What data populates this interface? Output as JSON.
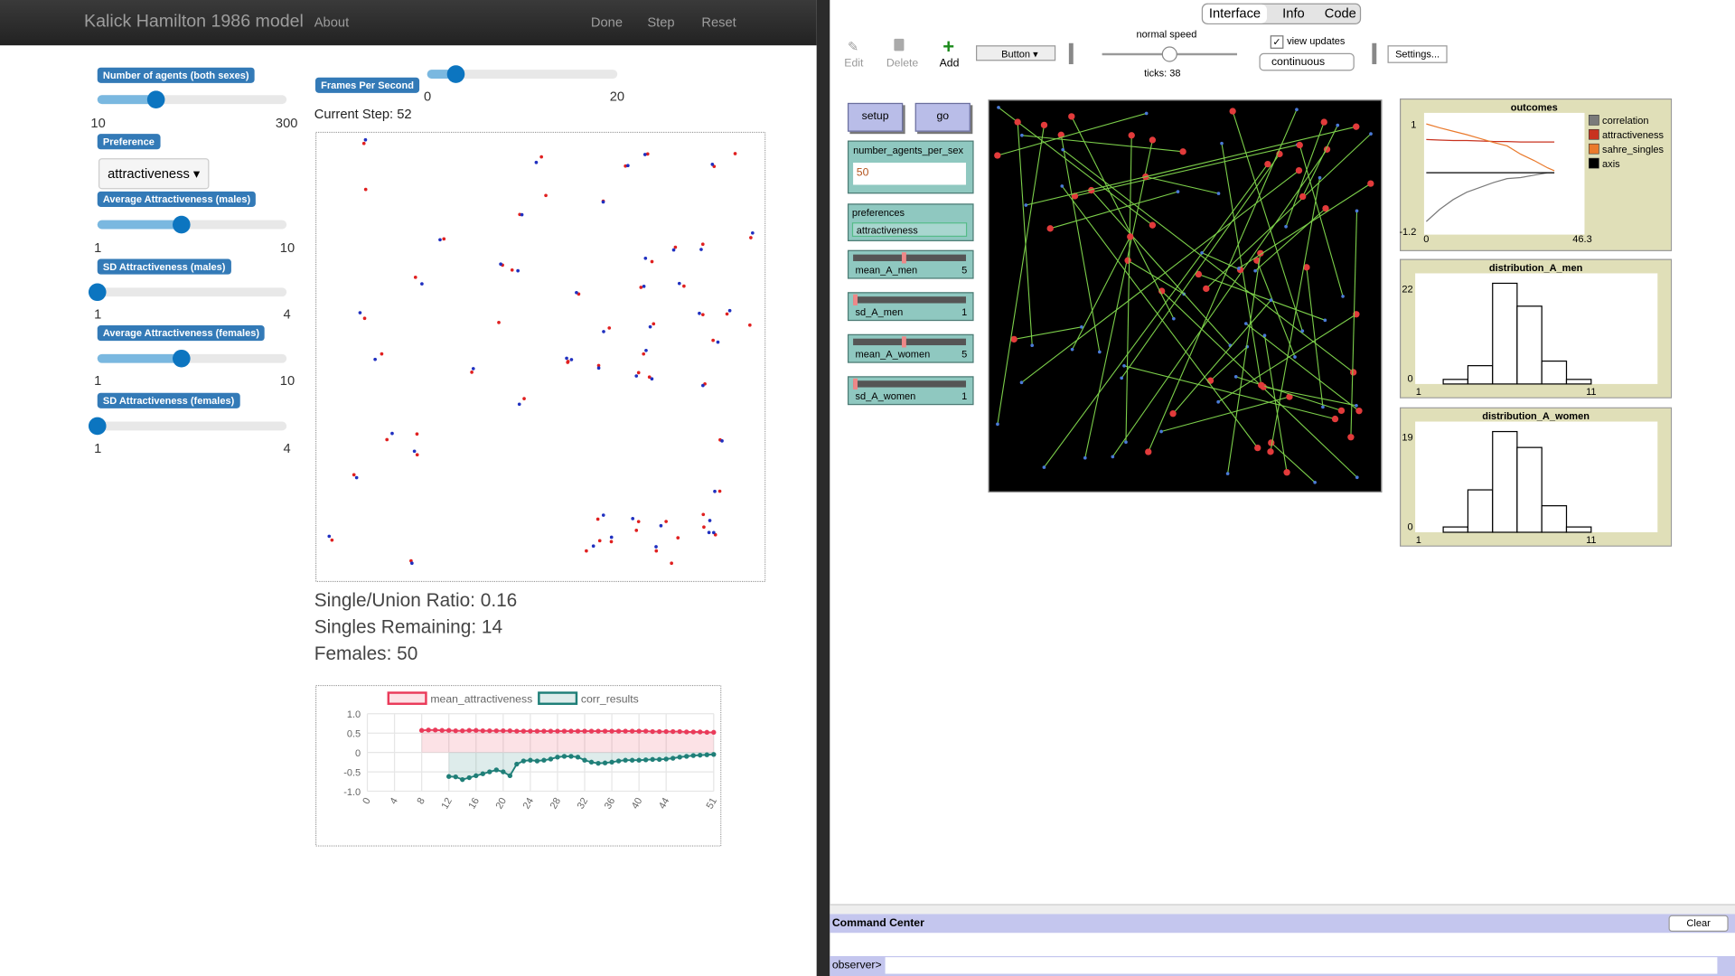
{
  "app": {
    "title": "Kalick Hamilton 1986 model",
    "nav": [
      "About",
      "Done",
      "Step",
      "Reset"
    ],
    "sliders": [
      {
        "label": "Number of agents (both sexes)",
        "min": 10,
        "max": 300
      },
      {
        "label": "Average Attractiveness (males)",
        "min": 1,
        "max": 10
      },
      {
        "label": "SD Attractiveness (males)",
        "min": 1,
        "max": 4
      },
      {
        "label": "Average Attractiveness (females)",
        "min": 1,
        "max": 10
      },
      {
        "label": "SD Attractiveness (females)",
        "min": 1,
        "max": 4
      }
    ],
    "preference_label": "Preference",
    "preference_value": "attractiveness",
    "fps": {
      "label": "Frames Per Second",
      "min": 0,
      "max": 20
    },
    "current_step": "Current Step: 52",
    "stats": [
      "Single/Union Ratio: 0.16",
      "Singles Remaining: 14",
      "Females: 50"
    ]
  },
  "netlogo": {
    "tabs": [
      "Interface",
      "Info",
      "Code"
    ],
    "tools": [
      "Edit",
      "Delete",
      "Add"
    ],
    "widget_type": "Button",
    "speed": "normal speed",
    "ticks": "ticks: 38",
    "view_updates": "view updates",
    "update_mode": "continuous",
    "settings": "Settings...",
    "buttons": [
      "setup",
      "go"
    ],
    "input": {
      "label": "number_agents_per_sex",
      "value": "50"
    },
    "chooser": {
      "label": "preferences",
      "value": "attractiveness"
    },
    "sliders": [
      {
        "label": "mean_A_men",
        "value": 5
      },
      {
        "label": "sd_A_men",
        "value": 1
      },
      {
        "label": "mean_A_women",
        "value": 5
      },
      {
        "label": "sd_A_women",
        "value": 1
      }
    ],
    "command_center": "Command Center",
    "clear": "Clear",
    "prompt": "observer>"
  },
  "chart_data": [
    {
      "type": "line",
      "x": [
        8,
        9,
        10,
        11,
        12,
        13,
        14,
        15,
        16,
        17,
        18,
        19,
        20,
        21,
        22,
        23,
        24,
        25,
        26,
        27,
        28,
        29,
        30,
        31,
        32,
        33,
        34,
        35,
        36,
        37,
        38,
        39,
        40,
        41,
        42,
        43,
        44,
        45,
        46,
        47,
        48,
        49,
        50,
        51
      ],
      "series": [
        {
          "name": "mean_attractiveness",
          "color": "#ea3b5a",
          "values": [
            0.57,
            0.58,
            0.58,
            0.57,
            0.57,
            0.56,
            0.56,
            0.57,
            0.57,
            0.56,
            0.56,
            0.56,
            0.56,
            0.56,
            0.55,
            0.55,
            0.55,
            0.55,
            0.55,
            0.55,
            0.55,
            0.55,
            0.55,
            0.55,
            0.55,
            0.55,
            0.55,
            0.55,
            0.55,
            0.55,
            0.55,
            0.55,
            0.55,
            0.55,
            0.54,
            0.54,
            0.54,
            0.54,
            0.54,
            0.53,
            0.53,
            0.53,
            0.52,
            0.52
          ]
        },
        {
          "name": "corr_results",
          "color": "#1f7f78",
          "values": [
            null,
            null,
            null,
            null,
            -0.62,
            -0.63,
            -0.7,
            -0.65,
            -0.6,
            -0.55,
            -0.5,
            -0.45,
            -0.5,
            -0.6,
            -0.3,
            -0.22,
            -0.2,
            -0.22,
            -0.2,
            -0.17,
            -0.12,
            -0.1,
            -0.1,
            -0.12,
            -0.2,
            -0.25,
            -0.28,
            -0.27,
            -0.25,
            -0.22,
            -0.2,
            -0.2,
            -0.2,
            -0.19,
            -0.18,
            -0.18,
            -0.17,
            -0.15,
            -0.12,
            -0.1,
            -0.08,
            -0.07,
            -0.06,
            -0.05
          ]
        }
      ],
      "xlim": [
        0,
        51
      ],
      "xticks": [
        0,
        4,
        8,
        12,
        16,
        20,
        24,
        28,
        32,
        36,
        40,
        44,
        51
      ],
      "ylim": [
        -1,
        1
      ],
      "yticks": [
        {
          "value": 1,
          "label": "1.0"
        },
        0.5,
        0,
        -0.5,
        {
          "value": -1,
          "label": "-1.0"
        }
      ],
      "grid": true,
      "legend": "top"
    },
    {
      "type": "line",
      "title": "outcomes",
      "x": [
        0,
        4,
        8,
        12,
        16,
        20,
        24,
        28,
        32,
        36,
        38
      ],
      "series": [
        {
          "name": "correlation",
          "color": "#7a7a7a",
          "values": [
            -1.0,
            -0.75,
            -0.55,
            -0.4,
            -0.3,
            -0.2,
            -0.12,
            -0.1,
            -0.05,
            0.0,
            0.0
          ]
        },
        {
          "name": "attractiveness",
          "color": "#c8321f",
          "values": [
            0.68,
            0.67,
            0.66,
            0.66,
            0.65,
            0.64,
            0.64,
            0.63,
            0.63,
            0.63,
            0.63
          ]
        },
        {
          "name": "sahre_singles",
          "color": "#ea7a2c",
          "values": [
            1.0,
            0.92,
            0.85,
            0.78,
            0.7,
            0.62,
            0.55,
            0.38,
            0.25,
            0.1,
            0.04
          ]
        },
        {
          "name": "axis",
          "color": "#000000",
          "values": [
            0,
            0,
            0,
            0,
            0,
            0,
            0,
            0,
            0,
            0,
            0
          ]
        }
      ],
      "xlim": [
        0,
        46.3
      ],
      "xticks": [
        0,
        46.3
      ],
      "ylim": [
        -1.2,
        1
      ],
      "yticks": [
        1,
        -1.2
      ],
      "grid": false,
      "legend": "right"
    },
    {
      "type": "histogram",
      "title": "distribution_A_men",
      "bins": [
        1,
        2.43,
        3.86,
        5.29,
        6.71,
        8.14,
        9.57,
        11
      ],
      "values": [
        0,
        1,
        4,
        22,
        17,
        5,
        1
      ],
      "xlim": [
        1,
        11
      ],
      "xticks": [
        1,
        11
      ],
      "ylim": [
        0,
        22
      ],
      "yticks": [
        22,
        0
      ],
      "color": "#ffffff"
    },
    {
      "type": "histogram",
      "title": "distribution_A_women",
      "bins": [
        1,
        2.43,
        3.86,
        5.29,
        6.71,
        8.14,
        9.57,
        11
      ],
      "values": [
        0,
        1,
        8,
        19,
        16,
        5,
        1
      ],
      "xlim": [
        1,
        11
      ],
      "xticks": [
        1,
        11
      ],
      "ylim": [
        0,
        19
      ],
      "yticks": [
        19,
        0
      ],
      "color": "#ffffff"
    }
  ]
}
